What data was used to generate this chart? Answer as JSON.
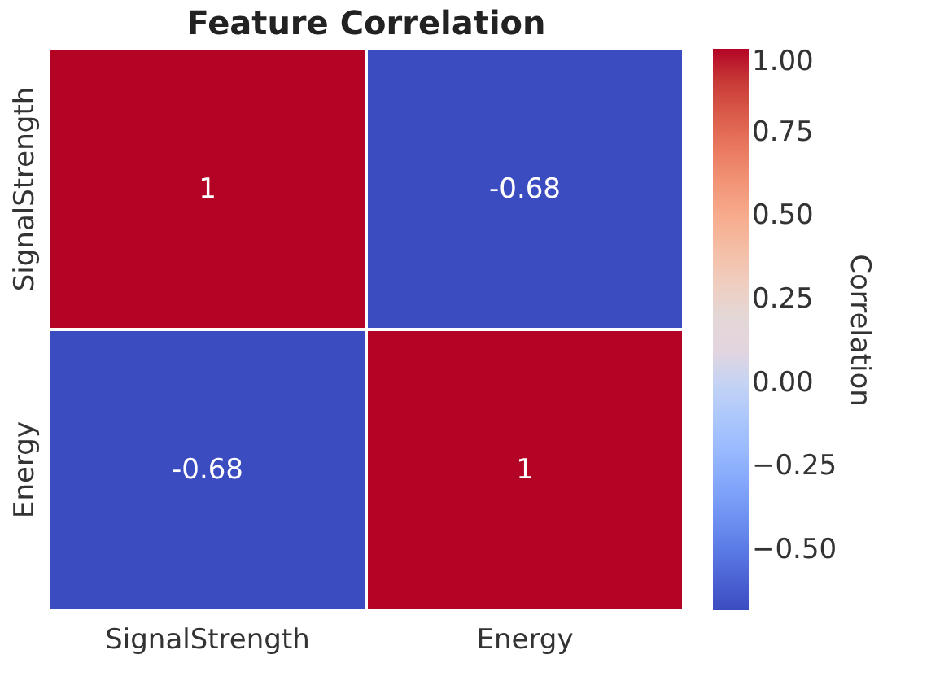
{
  "chart_data": {
    "type": "heatmap",
    "title": "Feature Correlation",
    "categories": [
      "SignalStrength",
      "Energy"
    ],
    "y_categories": [
      "SignalStrength",
      "Energy"
    ],
    "cells": [
      [
        1,
        -0.68
      ],
      [
        -0.68,
        1
      ]
    ],
    "data_labels": true,
    "clabel": "Correlation",
    "clim": [
      -0.68,
      1
    ],
    "cticks": [
      {
        "value": -0.5,
        "label": "−0.50"
      },
      {
        "value": -0.25,
        "label": "−0.25"
      },
      {
        "value": 0,
        "label": "0.00"
      },
      {
        "value": 0.25,
        "label": "0.25"
      },
      {
        "value": 0.5,
        "label": "0.50"
      },
      {
        "value": 0.75,
        "label": "0.75"
      },
      {
        "value": 1,
        "label": "1.00"
      }
    ]
  }
}
